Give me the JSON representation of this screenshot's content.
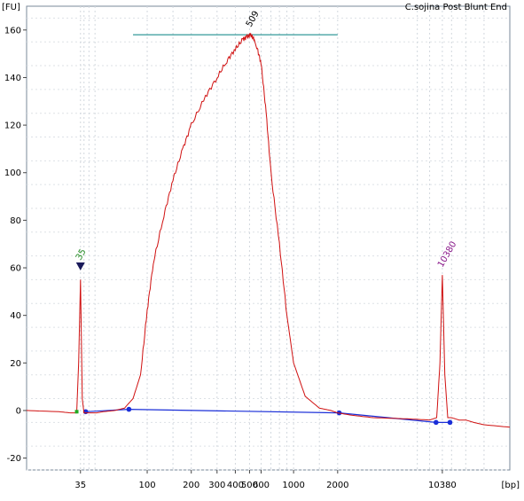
{
  "chart_data": {
    "type": "line",
    "title": "C.sojina Post Blunt End",
    "xlabel": "[bp]",
    "ylabel": "[FU]",
    "ylim": [
      -25,
      170
    ],
    "yticks": [
      -20,
      0,
      20,
      40,
      60,
      80,
      100,
      120,
      140,
      160
    ],
    "xticks": [
      "35",
      "100",
      "200",
      "300",
      "400",
      "500",
      "600",
      "1000",
      "2000",
      "10380"
    ],
    "grid": true,
    "series": [
      {
        "color": "#d01010",
        "x": [
          15,
          25,
          30,
          33,
          34,
          35,
          36,
          37,
          40,
          45,
          50,
          60,
          70,
          80,
          90,
          100,
          110,
          130,
          150,
          175,
          200,
          250,
          300,
          350,
          400,
          450,
          480,
          509,
          540,
          560,
          600,
          650,
          700,
          800,
          900,
          1000,
          1200,
          1500,
          1800,
          2000,
          2500,
          3500,
          6000,
          8500,
          9500,
          10000,
          10380,
          10800,
          11300,
          12000,
          13500,
          15000,
          17000,
          20000,
          30000
        ],
        "y": [
          0,
          -0.5,
          -1,
          -1,
          20,
          55,
          5,
          -1,
          -1,
          -1,
          -0.5,
          0,
          1,
          5,
          15,
          42,
          62,
          82,
          97,
          110,
          120,
          132,
          140,
          147,
          152,
          156,
          157,
          158,
          156,
          153,
          146,
          125,
          100,
          70,
          40,
          20,
          6,
          1,
          0,
          -1,
          -2,
          -3,
          -3.5,
          -4,
          -3,
          20,
          57,
          15,
          -3,
          -3,
          -4,
          -4,
          -5,
          -6,
          -7
        ]
      }
    ],
    "markers": [
      {
        "label": "35",
        "x": 35,
        "y": 60,
        "color": "#228b22"
      },
      {
        "label": "509",
        "x": 509,
        "y": 158,
        "color": "#000000"
      },
      {
        "label": "10380",
        "x": 10380,
        "y": 57,
        "color": "#8b1a8b"
      }
    ],
    "baseline": [
      {
        "x": 38,
        "y": -0.5
      },
      {
        "x": 75,
        "y": 0.5
      },
      {
        "x": 2050,
        "y": -1
      },
      {
        "x": 9400,
        "y": -5
      },
      {
        "x": 11700,
        "y": -5
      }
    ],
    "region_line": {
      "x_from": 80,
      "x_to": 2000,
      "y": 158
    }
  }
}
